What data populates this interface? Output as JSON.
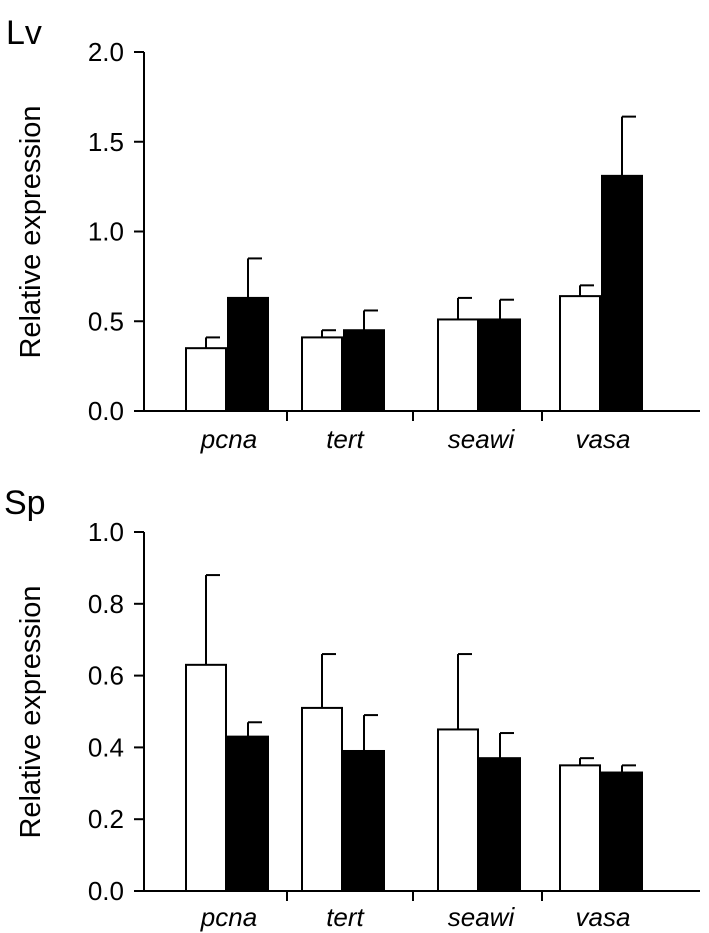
{
  "chart_data": [
    {
      "type": "bar",
      "panel_label": "Lv",
      "ylabel": "Relative expression",
      "categories": [
        "pcna",
        "tert",
        "seawi",
        "vasa"
      ],
      "ylim": [
        0,
        2.0
      ],
      "yticks": [
        "0.0",
        "0.5",
        "1.0",
        "1.5",
        "2.0"
      ],
      "series": [
        {
          "fill": "#ffffff",
          "values": [
            0.35,
            0.41,
            0.51,
            0.64
          ],
          "errors": [
            0.06,
            0.04,
            0.12,
            0.06
          ]
        },
        {
          "fill": "#000000",
          "values": [
            0.63,
            0.45,
            0.51,
            1.31
          ],
          "errors": [
            0.22,
            0.11,
            0.11,
            0.33
          ]
        }
      ]
    },
    {
      "type": "bar",
      "panel_label": "Sp",
      "ylabel": "Relative expression",
      "categories": [
        "pcna",
        "tert",
        "seawi",
        "vasa"
      ],
      "ylim": [
        0,
        1.0
      ],
      "yticks": [
        "0.0",
        "0.2",
        "0.4",
        "0.6",
        "0.8",
        "1.0"
      ],
      "series": [
        {
          "fill": "#ffffff",
          "values": [
            0.63,
            0.51,
            0.45,
            0.35
          ],
          "errors": [
            0.25,
            0.15,
            0.21,
            0.02
          ]
        },
        {
          "fill": "#000000",
          "values": [
            0.43,
            0.39,
            0.37,
            0.33
          ],
          "errors": [
            0.04,
            0.1,
            0.07,
            0.02
          ]
        }
      ]
    }
  ]
}
